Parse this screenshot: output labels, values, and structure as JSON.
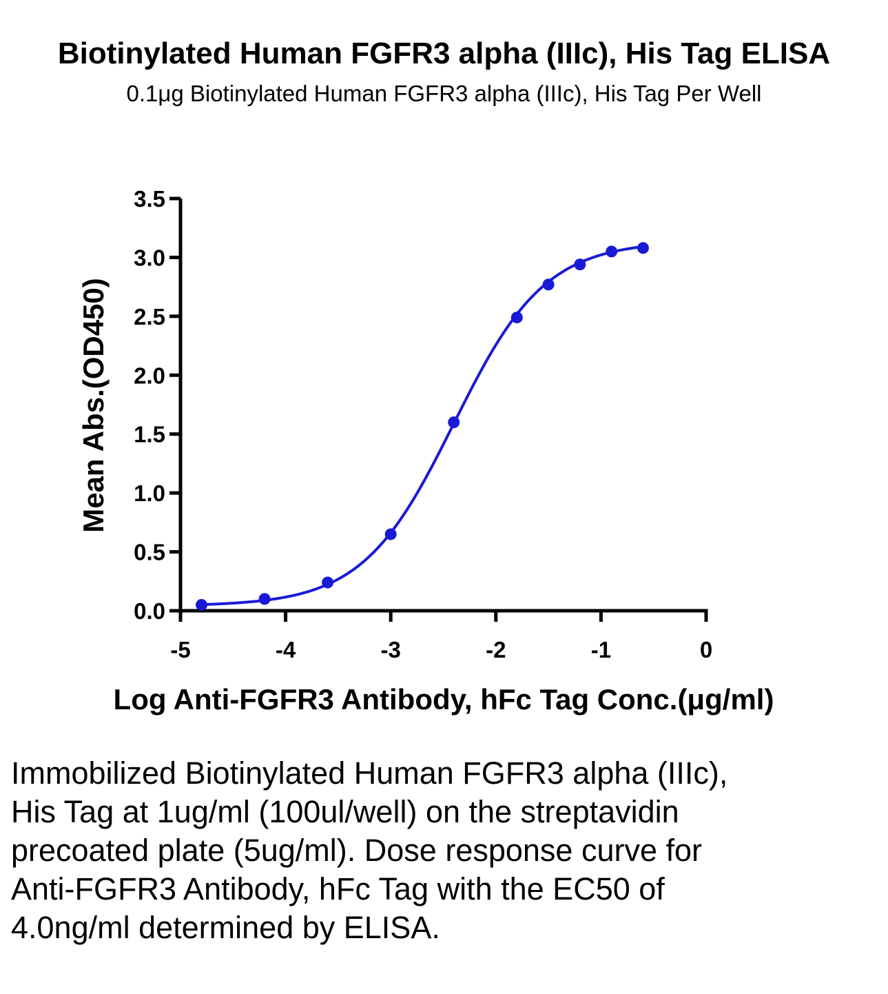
{
  "title": "Biotinylated Human FGFR3 alpha (IIIc), His Tag ELISA",
  "subtitle": "0.1μg Biotinylated Human FGFR3 alpha (IIIc), His Tag Per Well",
  "caption": "Immobilized Biotinylated Human FGFR3 alpha (IIIc), His Tag at 1ug/ml (100ul/well) on the streptavidin precoated plate (5ug/ml). Dose response curve for Anti-FGFR3 Antibody, hFc Tag with the EC50 of 4.0ng/ml determined by ELISA.",
  "colors": {
    "series": "#1a1ad6",
    "axis": "#000000"
  },
  "chart_data": {
    "type": "line",
    "xlabel": "Log Anti-FGFR3 Antibody, hFc Tag Conc.(μg/ml)",
    "ylabel": "Mean Abs.(OD450)",
    "xlim": [
      -5,
      0
    ],
    "ylim": [
      0,
      3.5
    ],
    "xticks": [
      "-5",
      "-4",
      "-3",
      "-2",
      "-1",
      "0"
    ],
    "yticks": [
      "0.0",
      "0.5",
      "1.0",
      "1.5",
      "2.0",
      "2.5",
      "3.0",
      "3.5"
    ],
    "grid": false,
    "legend": "none",
    "series": [
      {
        "x": [
          -4.8,
          -4.2,
          -3.6,
          -3.0,
          -2.4,
          -1.8,
          -1.5,
          -1.2,
          -0.9,
          -0.6
        ],
        "y": [
          0.05,
          0.1,
          0.24,
          0.65,
          1.6,
          2.49,
          2.77,
          2.94,
          3.05,
          3.08
        ]
      }
    ],
    "fit": {
      "model": "4PL",
      "bottom": 0.04,
      "top": 3.14,
      "log_ec50": -2.4,
      "hill_slope": 1.0
    }
  }
}
